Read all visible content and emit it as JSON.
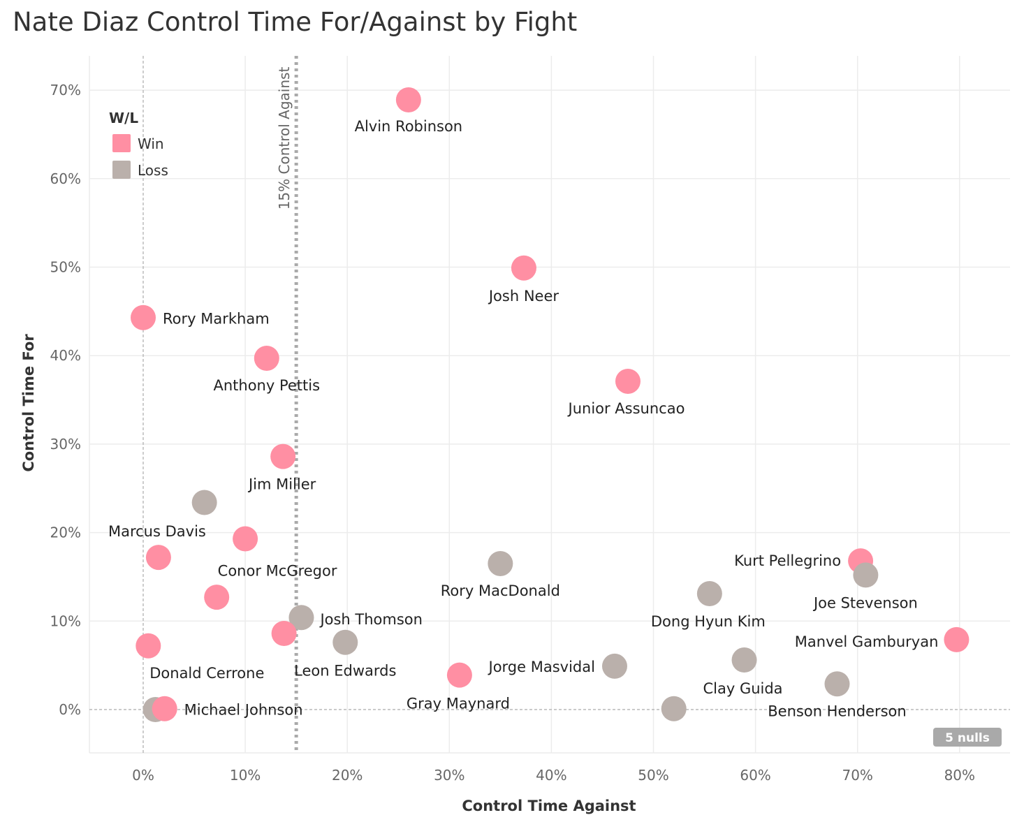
{
  "chart_data": {
    "type": "scatter",
    "title": "Nate Diaz Control Time For/Against by Fight",
    "xlabel": "Control Time Against",
    "ylabel": "Control Time For",
    "xlim": [
      -0.05,
      0.85
    ],
    "ylim": [
      -0.05,
      0.74
    ],
    "x_ticks": [
      0,
      0.1,
      0.2,
      0.3,
      0.4,
      0.5,
      0.6,
      0.7,
      0.8
    ],
    "x_tick_labels": [
      "0%",
      "10%",
      "20%",
      "30%",
      "40%",
      "50%",
      "60%",
      "70%",
      "80%"
    ],
    "y_ticks": [
      0,
      0.1,
      0.2,
      0.3,
      0.4,
      0.5,
      0.6,
      0.7
    ],
    "y_tick_labels": [
      "0%",
      "10%",
      "20%",
      "30%",
      "40%",
      "50%",
      "60%",
      "70%"
    ],
    "grid": true,
    "legend": {
      "title": "W/L",
      "position": "top-left",
      "items": [
        {
          "name": "Win",
          "color": "#ff8fa3"
        },
        {
          "name": "Loss",
          "color": "#bab0ab"
        }
      ]
    },
    "reference_line": {
      "axis": "x",
      "value": 0.15,
      "label": "15% Control Against"
    },
    "nulls_badge": "5 nulls",
    "points": [
      {
        "x": 0.26,
        "y": 0.689,
        "result": "Win",
        "label": "Alvin Robinson"
      },
      {
        "x": 0.373,
        "y": 0.499,
        "result": "Win",
        "label": "Josh Neer"
      },
      {
        "x": 0.0,
        "y": 0.443,
        "result": "Win",
        "label": "Rory Markham"
      },
      {
        "x": 0.121,
        "y": 0.397,
        "result": "Win",
        "label": "Anthony Pettis"
      },
      {
        "x": 0.475,
        "y": 0.371,
        "result": "Win",
        "label": "Junior Assuncao"
      },
      {
        "x": 0.137,
        "y": 0.286,
        "result": "Win",
        "label": "Jim Miller"
      },
      {
        "x": 0.06,
        "y": 0.234,
        "result": "Loss",
        "label": ""
      },
      {
        "x": 0.1,
        "y": 0.193,
        "result": "Win",
        "label": "Conor McGregor"
      },
      {
        "x": 0.015,
        "y": 0.172,
        "result": "Win",
        "label": "Marcus Davis"
      },
      {
        "x": 0.35,
        "y": 0.165,
        "result": "Loss",
        "label": "Rory MacDonald"
      },
      {
        "x": 0.703,
        "y": 0.168,
        "result": "Win",
        "label": "Kurt Pellegrino"
      },
      {
        "x": 0.708,
        "y": 0.152,
        "result": "Loss",
        "label": "Joe Stevenson"
      },
      {
        "x": 0.555,
        "y": 0.131,
        "result": "Loss",
        "label": "Dong Hyun Kim"
      },
      {
        "x": 0.072,
        "y": 0.127,
        "result": "Win",
        "label": ""
      },
      {
        "x": 0.155,
        "y": 0.104,
        "result": "Loss",
        "label": "Josh Thomson"
      },
      {
        "x": 0.138,
        "y": 0.086,
        "result": "Win",
        "label": ""
      },
      {
        "x": 0.198,
        "y": 0.076,
        "result": "Loss",
        "label": "Leon Edwards"
      },
      {
        "x": 0.797,
        "y": 0.079,
        "result": "Win",
        "label": "Manvel Gamburyan"
      },
      {
        "x": 0.005,
        "y": 0.072,
        "result": "Win",
        "label": "Donald Cerrone"
      },
      {
        "x": 0.462,
        "y": 0.049,
        "result": "Loss",
        "label": "Jorge Masvidal"
      },
      {
        "x": 0.589,
        "y": 0.056,
        "result": "Loss",
        "label": "Clay Guida"
      },
      {
        "x": 0.31,
        "y": 0.039,
        "result": "Win",
        "label": "Gray Maynard"
      },
      {
        "x": 0.68,
        "y": 0.029,
        "result": "Loss",
        "label": "Benson Henderson"
      },
      {
        "x": 0.52,
        "y": 0.001,
        "result": "Loss",
        "label": ""
      },
      {
        "x": 0.012,
        "y": 0.0,
        "result": "Loss",
        "label": ""
      },
      {
        "x": 0.021,
        "y": 0.001,
        "result": "Win",
        "label": "Michael Johnson"
      }
    ]
  }
}
